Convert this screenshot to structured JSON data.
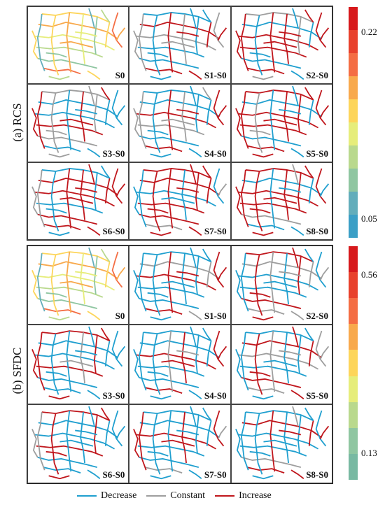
{
  "panels": [
    {
      "id": "a",
      "title": "(a) RCS",
      "colorbar": {
        "colors": [
          "#d7191c",
          "#e8412c",
          "#f46d43",
          "#f8a94c",
          "#fdd55a",
          "#e6ed7a",
          "#b9d98d",
          "#8fc6a1",
          "#62adbb",
          "#3b9fc6"
        ],
        "tick_high": "0.22",
        "tick_low": "0.05"
      },
      "cells": [
        {
          "label": "S0",
          "mode": "gradient"
        },
        {
          "label": "S1-S0",
          "mode": "mixed"
        },
        {
          "label": "S2-S0",
          "mode": "mostly-increase"
        },
        {
          "label": "S3-S0",
          "mode": "mixed"
        },
        {
          "label": "S4-S0",
          "mode": "mixed"
        },
        {
          "label": "S5-S0",
          "mode": "mostly-increase"
        },
        {
          "label": "S6-S0",
          "mode": "mostly-increase"
        },
        {
          "label": "S7-S0",
          "mode": "mostly-increase"
        },
        {
          "label": "S8-S0",
          "mode": "mostly-increase"
        }
      ]
    },
    {
      "id": "b",
      "title": "(b) SFDC",
      "colorbar": {
        "colors": [
          "#d7191c",
          "#e8412c",
          "#f46d43",
          "#f8a94c",
          "#fdd55a",
          "#e6ed7a",
          "#b9d98d",
          "#8fc6a1",
          "#78b9a2"
        ],
        "tick_high": "0.56",
        "tick_low": "0.13"
      },
      "cells": [
        {
          "label": "S0",
          "mode": "gradient"
        },
        {
          "label": "S1-S0",
          "mode": "mostly-decrease"
        },
        {
          "label": "S2-S0",
          "mode": "mixed"
        },
        {
          "label": "S3-S0",
          "mode": "mostly-decrease"
        },
        {
          "label": "S4-S0",
          "mode": "mostly-decrease"
        },
        {
          "label": "S5-S0",
          "mode": "mixed"
        },
        {
          "label": "S6-S0",
          "mode": "mostly-decrease"
        },
        {
          "label": "S7-S0",
          "mode": "mostly-decrease"
        },
        {
          "label": "S8-S0",
          "mode": "mostly-decrease"
        }
      ]
    }
  ],
  "legend": [
    {
      "label": "Decrease",
      "color": "#1f9fcf"
    },
    {
      "label": "Constant",
      "color": "#9e9e9e"
    },
    {
      "label": "Increase",
      "color": "#c0161c"
    }
  ]
}
